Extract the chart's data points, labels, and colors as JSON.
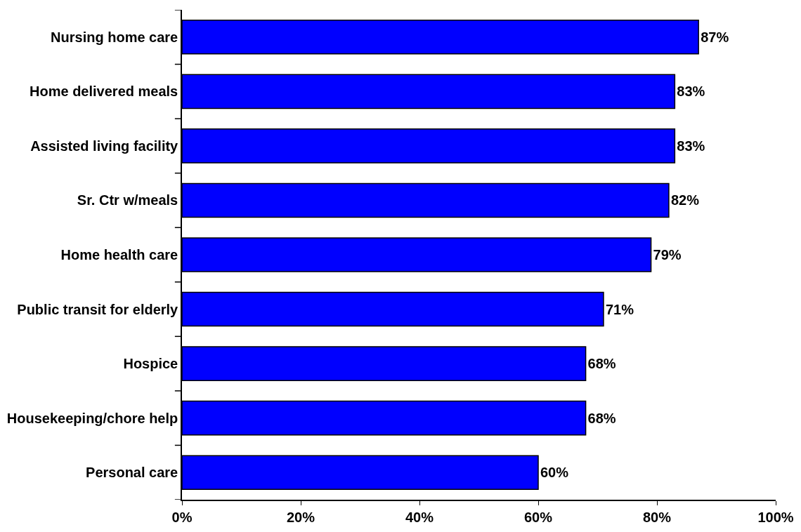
{
  "chart_data": {
    "type": "bar",
    "orientation": "horizontal",
    "categories": [
      "Nursing home care",
      "Home delivered meals",
      "Assisted living facility",
      "Sr. Ctr w/meals",
      "Home health care",
      "Public transit for elderly",
      "Hospice",
      "Housekeeping/chore help",
      "Personal care"
    ],
    "values": [
      87,
      83,
      83,
      82,
      79,
      71,
      68,
      68,
      60
    ],
    "value_labels": [
      "87%",
      "83%",
      "83%",
      "82%",
      "79%",
      "71%",
      "68%",
      "68%",
      "60%"
    ],
    "color": "#0000ff",
    "xlim": [
      0,
      100
    ],
    "xticks": [
      {
        "value": 0,
        "label": "0%"
      },
      {
        "value": 20,
        "label": "20%"
      },
      {
        "value": 40,
        "label": "40%"
      },
      {
        "value": 60,
        "label": "60%"
      },
      {
        "value": 80,
        "label": "80%"
      },
      {
        "value": 100,
        "label": "100%"
      }
    ],
    "legend": false
  }
}
